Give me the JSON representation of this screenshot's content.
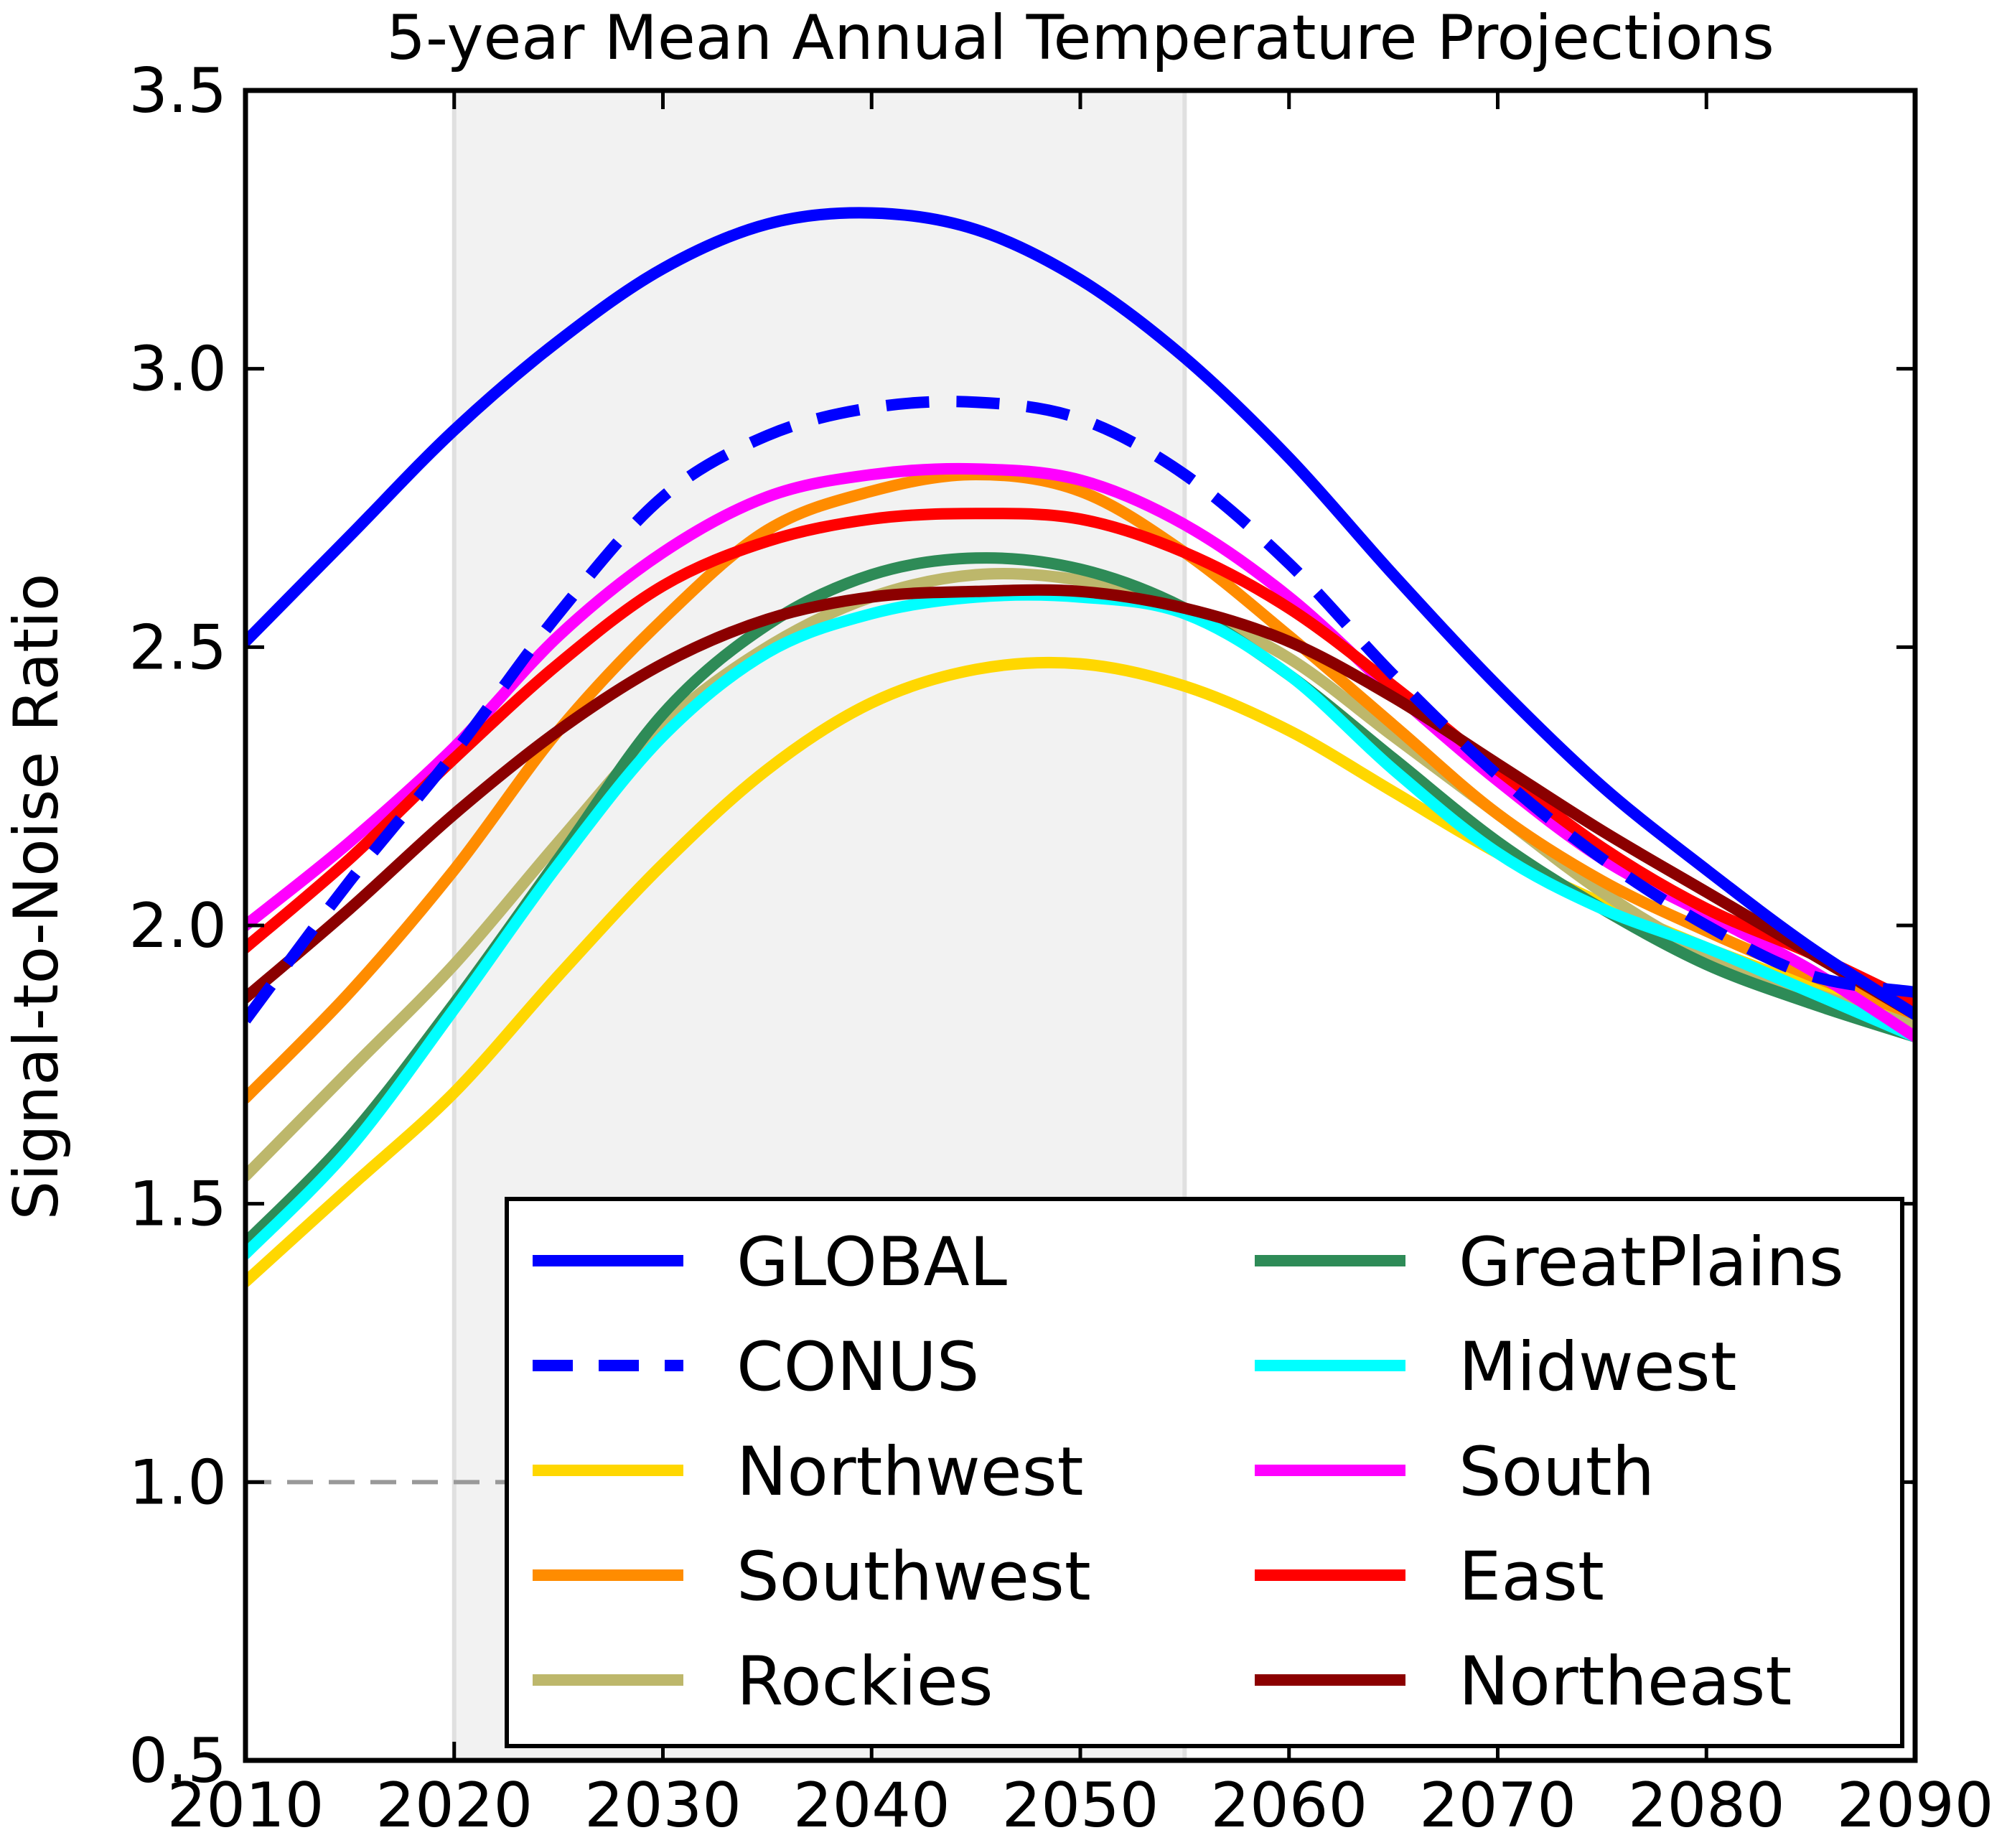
{
  "chart_data": {
    "type": "line",
    "title": "5-year Mean Annual Temperature Projections",
    "xlabel": "",
    "ylabel": "Signal-to-Noise Ratio",
    "xlim": [
      2010,
      2090
    ],
    "ylim": [
      0.5,
      3.5
    ],
    "xticks": [
      "2010",
      "2020",
      "2030",
      "2040",
      "2050",
      "2060",
      "2070",
      "2080",
      "2090"
    ],
    "yticks": [
      "0.5",
      "1.0",
      "1.5",
      "2.0",
      "2.5",
      "3.0",
      "3.5"
    ],
    "xtick_values": [
      2010,
      2020,
      2030,
      2040,
      2050,
      2060,
      2070,
      2080,
      2090
    ],
    "ytick_values": [
      0.5,
      1.0,
      1.5,
      2.0,
      2.5,
      3.0,
      3.5
    ],
    "grid": false,
    "legend_position": "lower-right",
    "legend_columns": 2,
    "shaded_region": {
      "x_start": 2020,
      "x_end": 2055,
      "color": "#f2f2f2",
      "edge_color": "#e0e0e0"
    },
    "reference_line": {
      "y": 1.0,
      "color": "#999999",
      "style": "dashed"
    },
    "x": [
      2010,
      2015,
      2020,
      2025,
      2030,
      2035,
      2040,
      2045,
      2050,
      2055,
      2060,
      2065,
      2070,
      2075,
      2080,
      2085,
      2090
    ],
    "series": [
      {
        "name": "GLOBAL",
        "color": "#0000ff",
        "style": "solid",
        "values": [
          2.51,
          2.7,
          2.89,
          3.05,
          3.18,
          3.26,
          3.28,
          3.25,
          3.16,
          3.02,
          2.84,
          2.63,
          2.43,
          2.25,
          2.1,
          1.96,
          1.84
        ]
      },
      {
        "name": "CONUS",
        "color": "#0000ff",
        "style": "dashed",
        "values": [
          1.83,
          2.08,
          2.31,
          2.56,
          2.77,
          2.88,
          2.93,
          2.94,
          2.91,
          2.81,
          2.65,
          2.45,
          2.27,
          2.12,
          2.0,
          1.91,
          1.88
        ]
      },
      {
        "name": "Northwest",
        "color": "#ffd700",
        "style": "solid",
        "values": [
          1.36,
          1.53,
          1.7,
          1.91,
          2.11,
          2.28,
          2.4,
          2.46,
          2.47,
          2.43,
          2.35,
          2.24,
          2.13,
          2.04,
          1.96,
          1.89,
          1.82
        ]
      },
      {
        "name": "Southwest",
        "color": "#ff8c00",
        "style": "solid",
        "values": [
          1.69,
          1.88,
          2.1,
          2.35,
          2.55,
          2.71,
          2.78,
          2.81,
          2.78,
          2.67,
          2.52,
          2.36,
          2.2,
          2.08,
          1.99,
          1.91,
          1.84
        ]
      },
      {
        "name": "Rockies",
        "color": "#bdb76b",
        "style": "solid",
        "values": [
          1.55,
          1.74,
          1.93,
          2.15,
          2.36,
          2.5,
          2.59,
          2.63,
          2.62,
          2.57,
          2.48,
          2.34,
          2.2,
          2.06,
          1.95,
          1.88,
          1.82
        ]
      },
      {
        "name": "GreatPlains",
        "color": "#2e8b57",
        "style": "solid",
        "values": [
          1.43,
          1.62,
          1.86,
          2.12,
          2.38,
          2.54,
          2.63,
          2.66,
          2.64,
          2.57,
          2.45,
          2.3,
          2.15,
          2.03,
          1.93,
          1.86,
          1.8
        ]
      },
      {
        "name": "Midwest",
        "color": "#00ffff",
        "style": "solid",
        "values": [
          1.41,
          1.6,
          1.85,
          2.11,
          2.34,
          2.49,
          2.56,
          2.59,
          2.59,
          2.56,
          2.45,
          2.28,
          2.13,
          2.03,
          1.96,
          1.88,
          1.8
        ]
      },
      {
        "name": "South",
        "color": "#ff00ff",
        "style": "solid",
        "values": [
          2.0,
          2.15,
          2.32,
          2.52,
          2.67,
          2.77,
          2.81,
          2.82,
          2.8,
          2.72,
          2.59,
          2.42,
          2.26,
          2.12,
          2.02,
          1.92,
          1.8
        ]
      },
      {
        "name": "East",
        "color": "#ff0000",
        "style": "solid",
        "values": [
          1.96,
          2.12,
          2.3,
          2.47,
          2.61,
          2.69,
          2.73,
          2.74,
          2.73,
          2.67,
          2.57,
          2.43,
          2.28,
          2.14,
          2.03,
          1.95,
          1.86
        ]
      },
      {
        "name": "Northeast",
        "color": "#8b0000",
        "style": "solid",
        "values": [
          1.87,
          2.03,
          2.2,
          2.35,
          2.47,
          2.55,
          2.59,
          2.6,
          2.6,
          2.57,
          2.51,
          2.41,
          2.29,
          2.17,
          2.06,
          1.95,
          1.84
        ]
      }
    ]
  }
}
